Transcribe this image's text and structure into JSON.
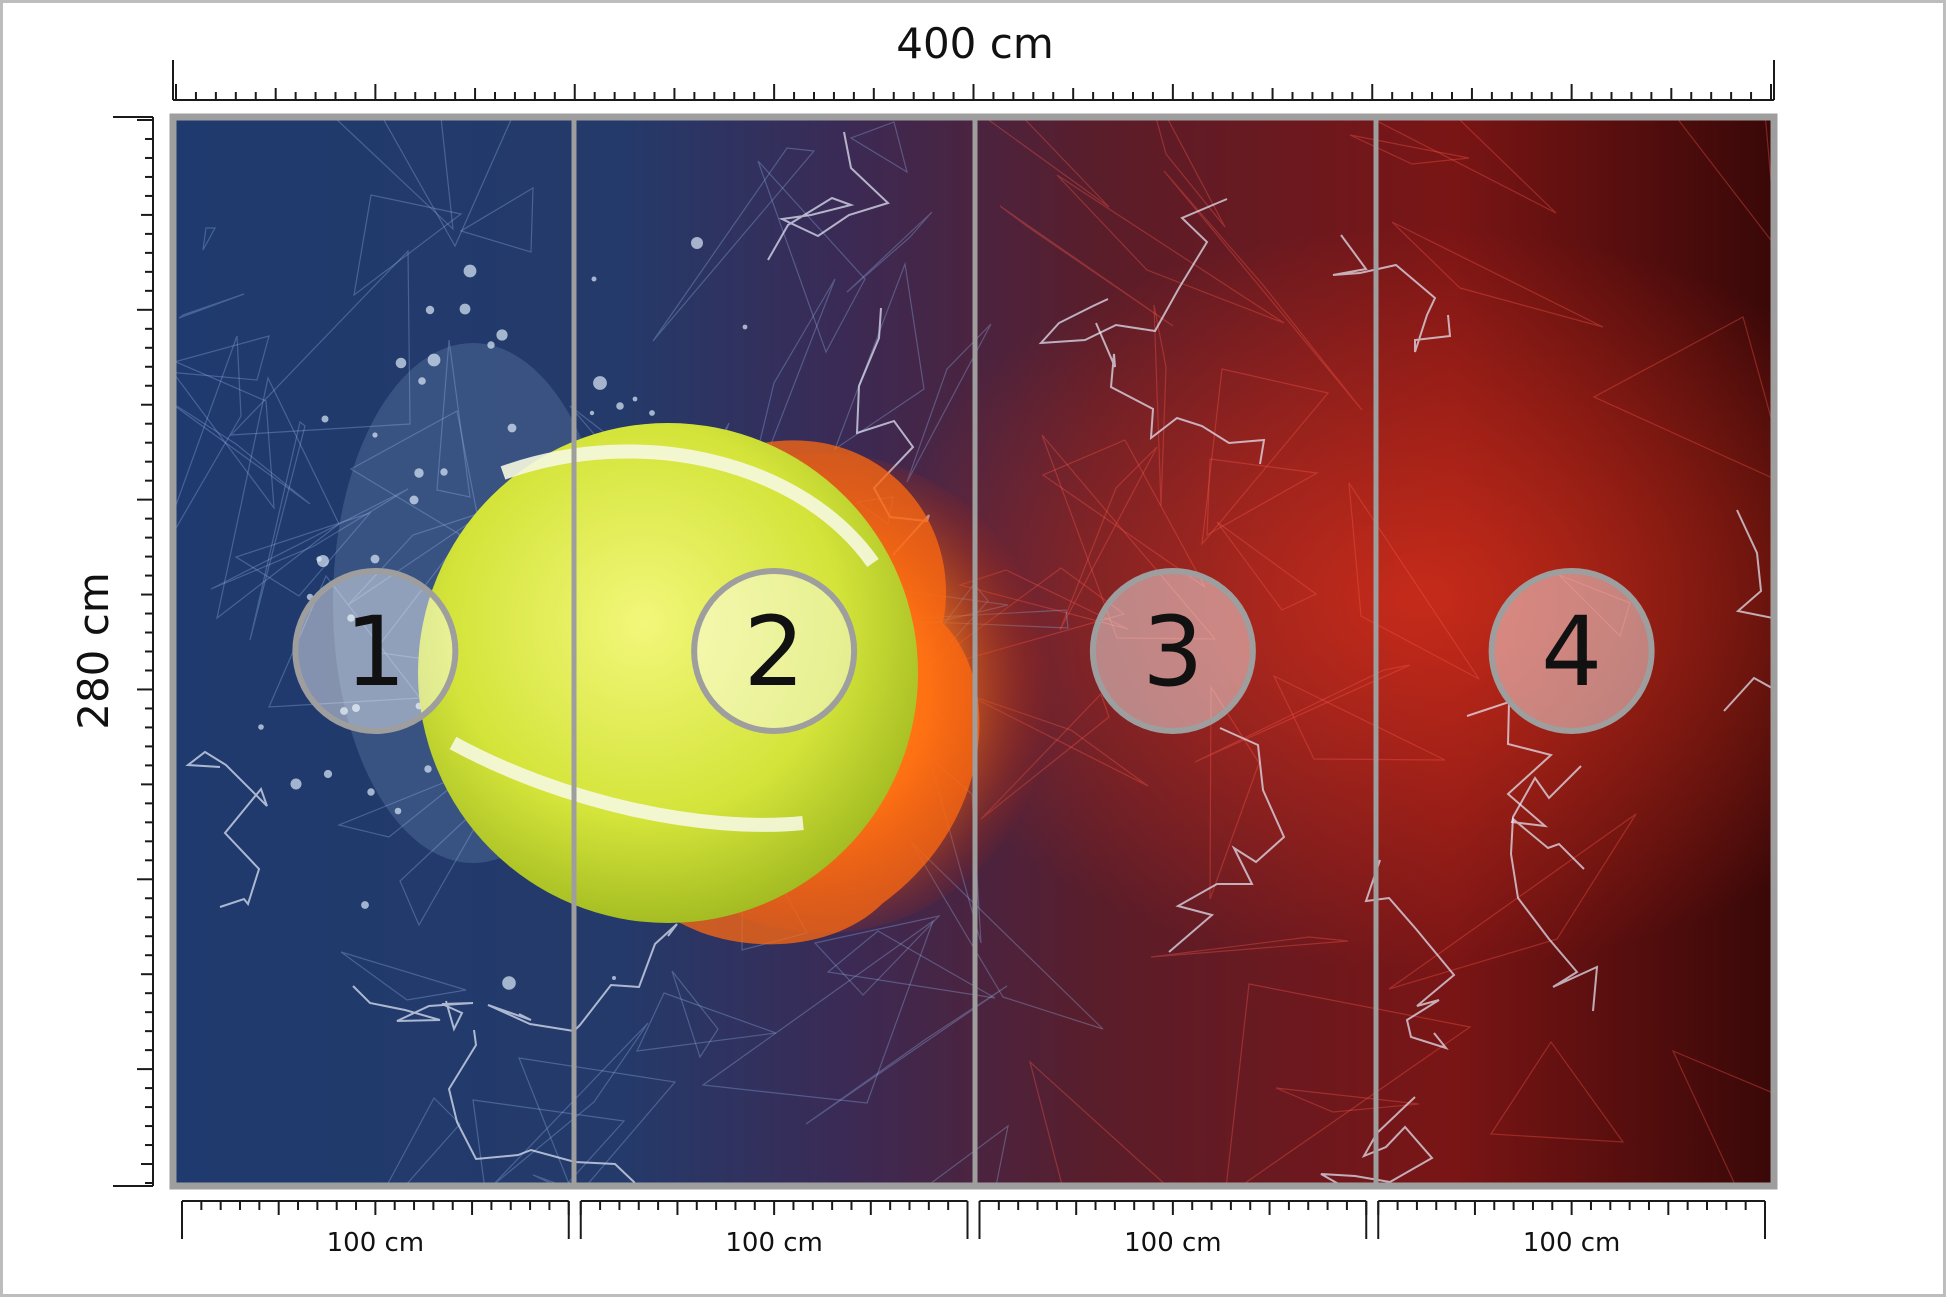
{
  "dimensions": {
    "width_label": "400 cm",
    "height_label": "280 cm"
  },
  "panels": [
    {
      "number": "1",
      "width_label": "100 cm"
    },
    {
      "number": "2",
      "width_label": "100 cm"
    },
    {
      "number": "3",
      "width_label": "100 cm"
    },
    {
      "number": "4",
      "width_label": "100 cm"
    }
  ],
  "colors": {
    "frame": "#9e9e9e",
    "tick": "#1a1a1a",
    "water_blue": "#1c3566",
    "fire_red": "#7a1414",
    "ball": "#d6e53a"
  },
  "icons": {
    "ball": "tennis-ball-icon"
  }
}
